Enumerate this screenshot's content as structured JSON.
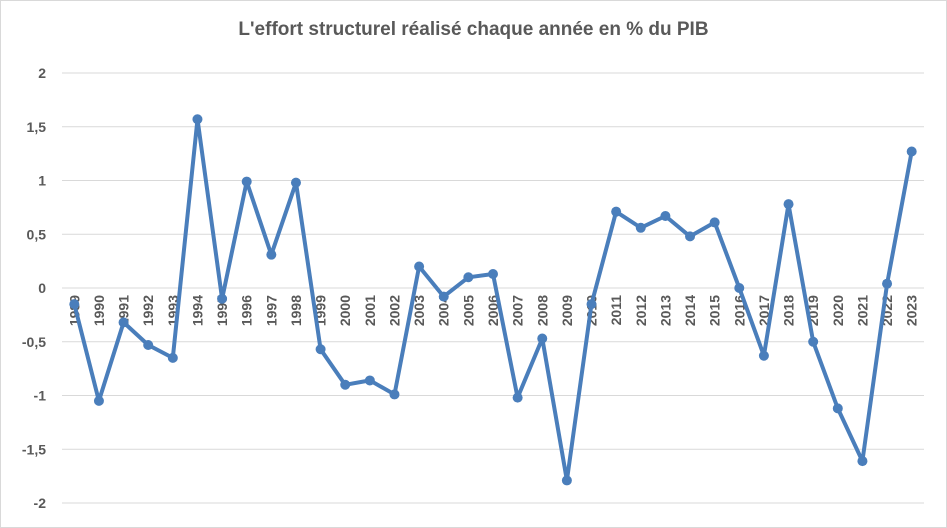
{
  "chart_data": {
    "type": "line",
    "title": "L'effort structurel réalisé chaque année en % du PIB",
    "xlabel": "",
    "ylabel": "",
    "ylim": [
      -2,
      2
    ],
    "yticks": [
      "2",
      "1,5",
      "1",
      "0,5",
      "0",
      "-0,5",
      "-1",
      "-1,5",
      "-2"
    ],
    "ytick_values": [
      2,
      1.5,
      1,
      0.5,
      0,
      -0.5,
      -1,
      -1.5,
      -2
    ],
    "grid": true,
    "legend": "none",
    "series_color": "#4a7ebb",
    "categories": [
      "1989",
      "1990",
      "1991",
      "1992",
      "1993",
      "1994",
      "1995",
      "1996",
      "1997",
      "1998",
      "1999",
      "2000",
      "2001",
      "2002",
      "2003",
      "2004",
      "2005",
      "2006",
      "2007",
      "2008",
      "2009",
      "2010",
      "2011",
      "2012",
      "2013",
      "2014",
      "2015",
      "2016",
      "2017",
      "2018",
      "2019",
      "2020",
      "2021",
      "2022",
      "2023"
    ],
    "series": [
      {
        "values": [
          -0.15,
          -1.05,
          -0.32,
          -0.53,
          -0.65,
          1.57,
          -0.1,
          0.99,
          0.31,
          0.98,
          -0.57,
          -0.9,
          -0.86,
          -0.99,
          0.2,
          -0.08,
          0.1,
          0.13,
          -1.02,
          -0.47,
          -1.79,
          -0.15,
          0.71,
          0.56,
          0.67,
          0.48,
          0.61,
          0.0,
          -0.63,
          0.78,
          -0.5,
          -1.12,
          -1.61,
          0.04,
          1.27
        ]
      }
    ]
  }
}
